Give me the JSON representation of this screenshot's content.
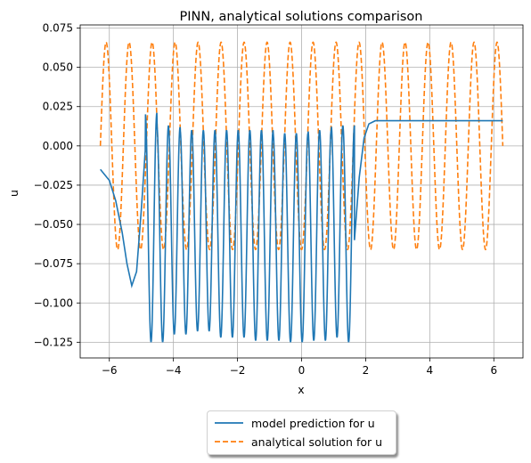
{
  "chart_data": {
    "type": "line",
    "title": "PINN, analytical solutions comparison",
    "xlabel": "x",
    "ylabel": "u",
    "xlim": [
      -6.91,
      6.91
    ],
    "ylim": [
      -0.135,
      0.077
    ],
    "xticks": [
      -6,
      -4,
      -2,
      0,
      2,
      4,
      6
    ],
    "xtick_labels": [
      "−6",
      "−4",
      "−2",
      "0",
      "2",
      "4",
      "6"
    ],
    "yticks": [
      0.075,
      0.05,
      0.025,
      0.0,
      -0.025,
      -0.05,
      -0.075,
      -0.1,
      -0.125
    ],
    "ytick_labels": [
      "0.075",
      "0.050",
      "0.025",
      "0.000",
      "−0.025",
      "−0.050",
      "−0.075",
      "−0.100",
      "−0.125"
    ],
    "grid": true,
    "legend_position": "below plot, centered",
    "series": [
      {
        "name": "model prediction for u",
        "color": "#1f77b4",
        "style": "solid",
        "description_points": {
          "x": [
            -6.28,
            -6.0,
            -5.8,
            -5.6,
            -5.45,
            -5.3,
            -5.15,
            -5.0,
            -4.88
          ],
          "y": [
            -0.015,
            -0.022,
            -0.035,
            -0.055,
            -0.075,
            -0.089,
            -0.08,
            -0.04,
            -0.003
          ]
        },
        "oscillation": {
          "x_start": -4.88,
          "x_end": 1.65,
          "period": 0.36,
          "top_values": [
            0.021,
            0.013,
            0.012,
            0.01,
            0.01,
            0.01,
            0.01,
            0.01,
            0.01,
            0.01,
            0.01,
            0.008,
            0.008,
            0.008,
            0.01,
            0.01,
            0.013,
            0.013
          ],
          "bottom_values": [
            -0.125,
            -0.125,
            -0.12,
            -0.12,
            -0.118,
            -0.118,
            -0.122,
            -0.122,
            -0.122,
            -0.124,
            -0.124,
            -0.124,
            -0.125,
            -0.125,
            -0.124,
            -0.124,
            -0.122,
            -0.125
          ]
        },
        "tail": {
          "x": [
            1.65,
            1.8,
            1.95,
            2.1,
            2.3,
            3.0,
            4.0,
            5.0,
            6.28
          ],
          "y": [
            -0.06,
            -0.02,
            0.005,
            0.014,
            0.016,
            0.016,
            0.016,
            0.016,
            0.016
          ]
        }
      },
      {
        "name": "analytical solution for u",
        "color": "#ff7f0e",
        "style": "dashed",
        "formula": "u = 0.066 sin(n x), n ≈ 17.5 cycles over [-6.28, 6.28]",
        "x_range": [
          -6.28,
          6.28
        ],
        "amplitude": 0.066,
        "cycles": 17.5
      }
    ]
  },
  "legend": {
    "items": [
      "model prediction for u",
      "analytical solution for u"
    ]
  }
}
